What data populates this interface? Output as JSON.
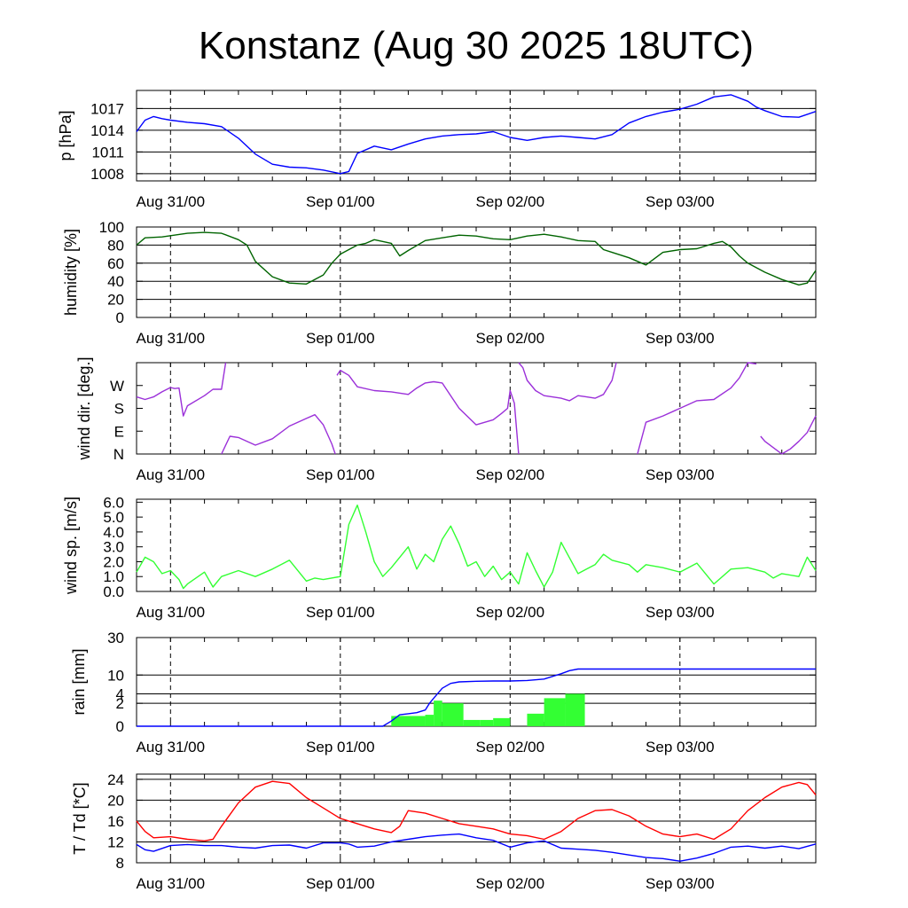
{
  "title": "Konstanz (Aug 30 2025 18UTC)",
  "colors": {
    "pressure": "#0000ff",
    "humidity": "#006400",
    "wind_dir": "#9b30d9",
    "wind_speed": "#33ff33",
    "rain_bar": "#33ff33",
    "rain_cumulative": "#0000ff",
    "temperature": "#ff0000",
    "dewpoint": "#0000ff"
  },
  "chart_data": [
    {
      "type": "line",
      "ylabel": "p [hPa]",
      "ylim": [
        1007,
        1019.5
      ],
      "yticks": [
        1008,
        1011,
        1014,
        1017
      ],
      "ytick_labels": [
        "1008",
        "1011",
        "1014",
        "1017"
      ],
      "grid": true,
      "x_range_hours": [
        -4,
        76
      ],
      "x_tick_hours": [
        0,
        20,
        40,
        60
      ],
      "x_tick_labels": [
        "Aug 31/00",
        "Sep 01/00",
        "Sep 02/00",
        "Sep 03/00"
      ],
      "series": [
        {
          "key": "pressure",
          "x": [
            -4,
            -3,
            -2,
            -1,
            0,
            2,
            4,
            6,
            8,
            10,
            12,
            14,
            16,
            18,
            20,
            21,
            22,
            24,
            26,
            28,
            30,
            32,
            34,
            36,
            38,
            40,
            42,
            44,
            46,
            48,
            50,
            52,
            54,
            56,
            58,
            60,
            62,
            64,
            66,
            68,
            69,
            70,
            72,
            74,
            76
          ],
          "y": [
            1013.8,
            1015.4,
            1015.9,
            1015.6,
            1015.4,
            1015.1,
            1014.9,
            1014.5,
            1012.9,
            1010.7,
            1009.3,
            1008.9,
            1008.8,
            1008.5,
            1008.0,
            1008.3,
            1010.8,
            1011.8,
            1011.3,
            1012.1,
            1012.8,
            1013.2,
            1013.4,
            1013.5,
            1013.8,
            1013.0,
            1012.6,
            1013.0,
            1013.2,
            1013.0,
            1012.8,
            1013.4,
            1015.0,
            1015.9,
            1016.5,
            1016.9,
            1017.6,
            1018.6,
            1018.9,
            1018.0,
            1017.2,
            1016.7,
            1015.9,
            1015.8,
            1016.6
          ]
        }
      ]
    },
    {
      "type": "line",
      "ylabel": "humidity [%]",
      "ylim": [
        0,
        100
      ],
      "yticks": [
        0,
        20,
        40,
        60,
        80,
        100
      ],
      "ytick_labels": [
        "0",
        "20",
        "40",
        "60",
        "80",
        "100"
      ],
      "grid": true,
      "x_range_hours": [
        -4,
        76
      ],
      "x_tick_hours": [
        0,
        20,
        40,
        60
      ],
      "x_tick_labels": [
        "Aug 31/00",
        "Sep 01/00",
        "Sep 02/00",
        "Sep 03/00"
      ],
      "series": [
        {
          "key": "humidity",
          "x": [
            -4,
            -3,
            -1,
            2,
            4,
            6,
            8,
            9,
            10,
            12,
            14,
            16,
            18,
            19,
            20,
            22,
            23,
            24,
            26,
            27,
            28,
            30,
            32,
            34,
            36,
            38,
            40,
            42,
            44,
            46,
            48,
            50,
            51,
            52,
            54,
            56,
            58,
            60,
            62,
            64,
            65,
            66,
            67,
            68,
            70,
            72,
            74,
            75,
            76
          ],
          "y": [
            80,
            88,
            89,
            93,
            94,
            93,
            86,
            80,
            62,
            45,
            38,
            37,
            47,
            60,
            70,
            80,
            82,
            86,
            82,
            68,
            74,
            85,
            88,
            91,
            90,
            87,
            86,
            90,
            92,
            89,
            85,
            84,
            75,
            72,
            66,
            58,
            72,
            75,
            76,
            82,
            84,
            78,
            68,
            60,
            50,
            42,
            36,
            38,
            52
          ]
        }
      ]
    },
    {
      "type": "line",
      "ylabel": "wind dir. [deg.]",
      "ylim": [
        0,
        360
      ],
      "yticks": [
        0,
        90,
        180,
        270
      ],
      "ytick_labels": [
        "N",
        "E",
        "S",
        "W"
      ],
      "grid": false,
      "x_range_hours": [
        -4,
        76
      ],
      "x_tick_hours": [
        0,
        20,
        40,
        60
      ],
      "x_tick_labels": [
        "Aug 31/00",
        "Sep 01/00",
        "Sep 02/00",
        "Sep 03/00"
      ],
      "series": [
        {
          "key": "wind_dir",
          "segments": [
            {
              "x": [
                -4,
                -3,
                -2,
                -1,
                0,
                0.5,
                1,
                1.5,
                2,
                4,
                5,
                6,
                6.5
              ],
              "y": [
                225,
                215,
                225,
                245,
                262,
                258,
                260,
                150,
                190,
                230,
                255,
                255,
                360
              ]
            },
            {
              "x": [
                6,
                7,
                8,
                10,
                12,
                14,
                16,
                17,
                18,
                19,
                19.4
              ],
              "y": [
                0,
                70,
                65,
                35,
                60,
                110,
                140,
                155,
                115,
                40,
                0
              ]
            },
            {
              "x": [
                19.6,
                20,
                21,
                22,
                24,
                26,
                28,
                29,
                30,
                31,
                32,
                34,
                36,
                38,
                39,
                39.7,
                40,
                40.5,
                41
              ],
              "y": [
                310,
                330,
                310,
                265,
                250,
                245,
                235,
                260,
                280,
                285,
                280,
                180,
                115,
                135,
                160,
                180,
                250,
                200,
                0
              ]
            },
            {
              "x": [
                41,
                41.5,
                42,
                43,
                44,
                46,
                47,
                48,
                49,
                50,
                51,
                52,
                52.5
              ],
              "y": [
                360,
                340,
                290,
                250,
                230,
                220,
                210,
                230,
                225,
                220,
                235,
                290,
                360
              ]
            },
            {
              "x": [
                55,
                56,
                58,
                60,
                62,
                64,
                66,
                67,
                68,
                69
              ],
              "y": [
                0,
                125,
                150,
                180,
                210,
                215,
                260,
                300,
                360,
                355
              ]
            },
            {
              "x": [
                69.5,
                70,
                71,
                72
              ],
              "y": [
                70,
                50,
                25,
                0
              ]
            },
            {
              "x": [
                72,
                73,
                74,
                75,
                76
              ],
              "y": [
                0,
                20,
                50,
                85,
                150
              ]
            }
          ]
        }
      ]
    },
    {
      "type": "line",
      "ylabel": "wind sp. [m/s]",
      "ylim": [
        0,
        6.2
      ],
      "yticks": [
        0,
        1,
        2,
        3,
        4,
        5,
        6
      ],
      "ytick_labels": [
        "0.0",
        "1.0",
        "2.0",
        "3.0",
        "4.0",
        "5.0",
        "6.0"
      ],
      "grid": false,
      "x_range_hours": [
        -4,
        76
      ],
      "x_tick_hours": [
        0,
        20,
        40,
        60
      ],
      "x_tick_labels": [
        "Aug 31/00",
        "Sep 01/00",
        "Sep 02/00",
        "Sep 03/00"
      ],
      "series": [
        {
          "key": "wind_speed",
          "x": [
            -4,
            -3,
            -2,
            -1,
            0,
            1,
            1.5,
            2,
            4,
            5,
            6,
            8,
            10,
            12,
            14,
            16,
            17,
            18,
            20,
            21,
            22,
            23,
            24,
            25,
            26,
            28,
            29,
            30,
            31,
            32,
            33,
            34,
            35,
            36,
            37,
            38,
            39,
            40,
            41,
            42,
            43,
            44,
            45,
            46,
            48,
            49,
            50,
            51,
            52,
            54,
            55,
            56,
            58,
            60,
            62,
            64,
            66,
            68,
            70,
            71,
            72,
            74,
            75,
            76
          ],
          "y": [
            1.3,
            2.3,
            2.0,
            1.2,
            1.4,
            0.8,
            0.2,
            0.5,
            1.3,
            0.3,
            1.0,
            1.4,
            1.0,
            1.5,
            2.1,
            0.7,
            0.9,
            0.8,
            1.0,
            4.5,
            5.8,
            4.0,
            2.0,
            1.0,
            1.6,
            3.0,
            1.5,
            2.5,
            2.0,
            3.5,
            4.4,
            3.2,
            1.7,
            2.0,
            1.0,
            1.7,
            0.8,
            1.3,
            0.5,
            2.6,
            1.4,
            0.3,
            1.3,
            3.3,
            1.2,
            1.5,
            1.8,
            2.5,
            2.1,
            1.8,
            1.3,
            1.8,
            1.6,
            1.3,
            1.9,
            0.5,
            1.5,
            1.6,
            1.3,
            0.9,
            1.2,
            1.0,
            2.3,
            1.4
          ]
        }
      ]
    },
    {
      "type": "bar",
      "ylabel": "rain [mm]",
      "y_scale": "sqrt",
      "ylim": [
        0,
        30
      ],
      "yticks": [
        0,
        2,
        4,
        10,
        30
      ],
      "ytick_labels": [
        "0",
        "2",
        "4",
        "10",
        "30"
      ],
      "grid": true,
      "x_range_hours": [
        -4,
        76
      ],
      "x_tick_hours": [
        0,
        20,
        40,
        60
      ],
      "x_tick_labels": [
        "Aug 31/00",
        "Sep 01/00",
        "Sep 02/00",
        "Sep 03/00"
      ],
      "bars": {
        "key": "rain_bar",
        "x_start": [
          26,
          30,
          31,
          32,
          34.5,
          36.5,
          38,
          40,
          42,
          44,
          46.5
        ],
        "x_end": [
          30,
          31,
          32,
          34.5,
          36.5,
          38,
          40,
          42,
          44,
          46.5,
          48.8
        ],
        "values": [
          0.4,
          0.5,
          2.5,
          2.0,
          0.15,
          0.15,
          0.25,
          0.0,
          0.6,
          3.0,
          4.0
        ]
      },
      "series": [
        {
          "key": "rain_cumulative",
          "x": [
            -4,
            25,
            26,
            27,
            28,
            29,
            30,
            30.5,
            31,
            32,
            33,
            34,
            36,
            38,
            40,
            42,
            44,
            46,
            47,
            48,
            50,
            60,
            76
          ],
          "y": [
            0,
            0,
            0.1,
            0.5,
            0.6,
            0.7,
            1.0,
            2.0,
            3.0,
            5.5,
            7.0,
            7.5,
            7.7,
            7.8,
            7.8,
            8.0,
            8.5,
            10.5,
            11.8,
            12.5,
            12.5,
            12.5,
            12.5
          ]
        }
      ]
    },
    {
      "type": "line",
      "ylabel": "T / Td [*C]",
      "ylim": [
        8,
        25
      ],
      "yticks": [
        8,
        12,
        16,
        20,
        24
      ],
      "ytick_labels": [
        "8",
        "12",
        "16",
        "20",
        "24"
      ],
      "grid": true,
      "x_range_hours": [
        -4,
        76
      ],
      "x_tick_hours": [
        0,
        20,
        40,
        60
      ],
      "x_tick_labels": [
        "Aug 31/00",
        "Sep 01/00",
        "Sep 02/00",
        "Sep 03/00"
      ],
      "series": [
        {
          "key": "temperature",
          "x": [
            -4,
            -3,
            -2,
            0,
            2,
            4,
            5,
            6,
            8,
            10,
            12,
            14,
            16,
            18,
            20,
            21,
            22,
            24,
            26,
            27,
            28,
            30,
            32,
            34,
            36,
            38,
            40,
            42,
            44,
            46,
            48,
            50,
            52,
            54,
            56,
            58,
            60,
            62,
            64,
            66,
            68,
            70,
            72,
            74,
            75,
            76
          ],
          "y": [
            16.0,
            14.0,
            12.8,
            13.0,
            12.5,
            12.2,
            12.5,
            15.0,
            19.5,
            22.5,
            23.6,
            23.2,
            20.5,
            18.5,
            16.5,
            16.0,
            15.5,
            14.5,
            13.8,
            15.0,
            18.0,
            17.5,
            16.5,
            15.5,
            15.0,
            14.5,
            13.5,
            13.2,
            12.5,
            14.0,
            16.5,
            18.0,
            18.2,
            17.0,
            15.0,
            13.5,
            13.0,
            13.5,
            12.5,
            14.5,
            18.0,
            20.5,
            22.5,
            23.4,
            23.0,
            21.0
          ]
        },
        {
          "key": "dewpoint",
          "x": [
            -4,
            -3,
            -2,
            0,
            2,
            4,
            6,
            8,
            10,
            12,
            14,
            16,
            18,
            20,
            21,
            22,
            24,
            26,
            28,
            30,
            32,
            34,
            36,
            38,
            40,
            42,
            44,
            46,
            48,
            50,
            52,
            54,
            56,
            58,
            60,
            62,
            64,
            66,
            68,
            70,
            72,
            74,
            76
          ],
          "y": [
            11.5,
            10.5,
            10.2,
            11.3,
            11.5,
            11.3,
            11.3,
            11.0,
            10.8,
            11.3,
            11.4,
            10.8,
            11.8,
            11.8,
            11.6,
            11.0,
            11.2,
            12.0,
            12.5,
            13.0,
            13.3,
            13.5,
            12.8,
            12.3,
            11.0,
            11.8,
            12.2,
            10.8,
            10.6,
            10.4,
            10.0,
            9.5,
            9.0,
            8.8,
            8.3,
            8.9,
            9.8,
            11.0,
            11.2,
            10.8,
            11.2,
            10.7,
            11.6
          ]
        }
      ]
    }
  ]
}
